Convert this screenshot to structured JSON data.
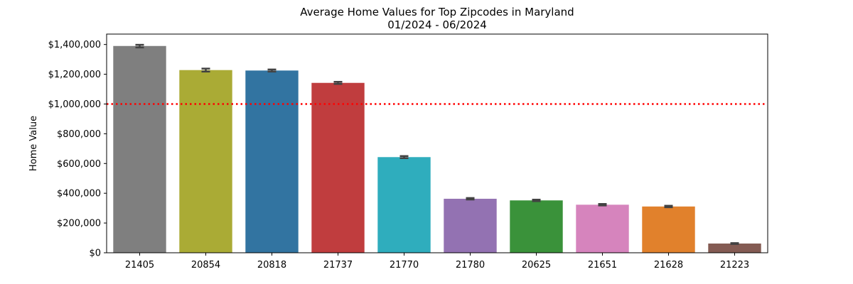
{
  "chart_data": {
    "type": "bar",
    "title": "Average Home Values for Top Zipcodes in Maryland",
    "subtitle": "01/2024 - 06/2024",
    "xlabel": "",
    "ylabel": "Home Value",
    "ylim": [
      0,
      1470000
    ],
    "yticks": [
      0,
      200000,
      400000,
      600000,
      800000,
      1000000,
      1200000,
      1400000
    ],
    "ytick_labels": [
      "$0",
      "$200,000",
      "$400,000",
      "$600,000",
      "$800,000",
      "$1,000,000",
      "$1,200,000",
      "$1,400,000"
    ],
    "categories": [
      "21405",
      "20854",
      "20818",
      "21737",
      "21770",
      "21780",
      "20625",
      "21651",
      "21628",
      "21223"
    ],
    "values": [
      1390000,
      1228000,
      1225000,
      1142000,
      643000,
      363000,
      352000,
      323000,
      311000,
      62000
    ],
    "error_bars": [
      [
        1380000,
        1398000
      ],
      [
        1218000,
        1238000
      ],
      [
        1218000,
        1232000
      ],
      [
        1135000,
        1149000
      ],
      [
        636000,
        650000
      ],
      [
        358000,
        368000
      ],
      [
        347000,
        357000
      ],
      [
        318000,
        328000
      ],
      [
        306000,
        316000
      ],
      [
        59000,
        65000
      ]
    ],
    "colors": [
      "#7f7f7f",
      "#aaab35",
      "#3274a1",
      "#c03d3e",
      "#2fadbd",
      "#9372b2",
      "#3a923a",
      "#d684bd",
      "#e1812c",
      "#845b53"
    ],
    "reference_line": {
      "value": 1000000,
      "color": "#ff0000",
      "style": "dotted"
    },
    "grid": false,
    "legend": "none"
  }
}
